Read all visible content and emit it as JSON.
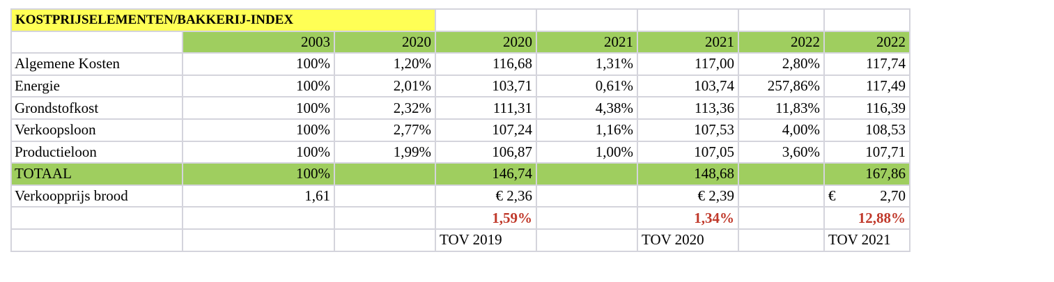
{
  "title": "KOSTPRIJSELEMENTEN/BAKKERIJ-INDEX",
  "years": [
    "2003",
    "2020",
    "2020",
    "2021",
    "2021",
    "2022",
    "2022"
  ],
  "rows": [
    {
      "label": "Algemene Kosten",
      "values": [
        "100%",
        "1,20%",
        "116,68",
        "1,31%",
        "117,00",
        "2,80%",
        "117,74"
      ]
    },
    {
      "label": "Energie",
      "values": [
        "100%",
        "2,01%",
        "103,71",
        "0,61%",
        "103,74",
        "257,86%",
        "117,49"
      ]
    },
    {
      "label": "Grondstofkost",
      "values": [
        "100%",
        "2,32%",
        "111,31",
        "4,38%",
        "113,36",
        "11,83%",
        "116,39"
      ]
    },
    {
      "label": "Verkoopsloon",
      "values": [
        "100%",
        "2,77%",
        "107,24",
        "1,16%",
        "107,53",
        "4,00%",
        "108,53"
      ]
    },
    {
      "label": "Productieloon",
      "values": [
        "100%",
        "1,99%",
        "106,87",
        "1,00%",
        "107,05",
        "3,60%",
        "107,71"
      ]
    }
  ],
  "total": {
    "label": "TOTAAL",
    "v2003": "100%",
    "v2020": "146,74",
    "v2021": "148,68",
    "v2022": "167,86"
  },
  "price": {
    "label": "Verkoopprijs brood",
    "v2003": "1,61",
    "v2020": "€ 2,36",
    "v2021": "€ 2,39",
    "v2022_symbol": "€",
    "v2022_amount": "2,70"
  },
  "change": {
    "v2020": "1,59%",
    "v2021": "1,34%",
    "v2022": "12,88%"
  },
  "reference": {
    "v2020": "TOV 2019",
    "v2021": "TOV 2020",
    "v2022": "TOV 2021"
  },
  "colors": {
    "header_green": "#9fce5f",
    "title_yellow": "#ffff55",
    "change_red": "#c0392b",
    "grid": "#d4d4dc"
  }
}
